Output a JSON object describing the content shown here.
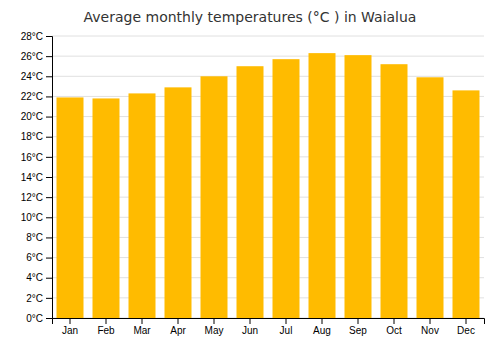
{
  "chart_data": {
    "type": "bar",
    "title": "Average monthly temperatures (°C ) in Waialua",
    "categories": [
      "Jan",
      "Feb",
      "Mar",
      "Apr",
      "May",
      "Jun",
      "Jul",
      "Aug",
      "Sep",
      "Oct",
      "Nov",
      "Dec"
    ],
    "values": [
      21.9,
      21.8,
      22.3,
      22.9,
      24.0,
      25.0,
      25.7,
      26.3,
      26.1,
      25.2,
      23.9,
      22.6
    ],
    "color": "#FFBB00",
    "ylim": [
      0,
      28
    ],
    "yticks": [
      {
        "value": 0,
        "label": "0°C"
      },
      {
        "value": 2,
        "label": "2°C"
      },
      {
        "value": 4,
        "label": "4°C"
      },
      {
        "value": 6,
        "label": "6°C"
      },
      {
        "value": 8,
        "label": "8°C"
      },
      {
        "value": 10,
        "label": "10°C"
      },
      {
        "value": 12,
        "label": "12°C"
      },
      {
        "value": 14,
        "label": "14°C"
      },
      {
        "value": 16,
        "label": "16°C"
      },
      {
        "value": 18,
        "label": "18°C"
      },
      {
        "value": 20,
        "label": "20°C"
      },
      {
        "value": 22,
        "label": "22°C"
      },
      {
        "value": 24,
        "label": "24°C"
      },
      {
        "value": 26,
        "label": "26°C"
      },
      {
        "value": 28,
        "label": "28°C"
      }
    ],
    "grid": true
  }
}
